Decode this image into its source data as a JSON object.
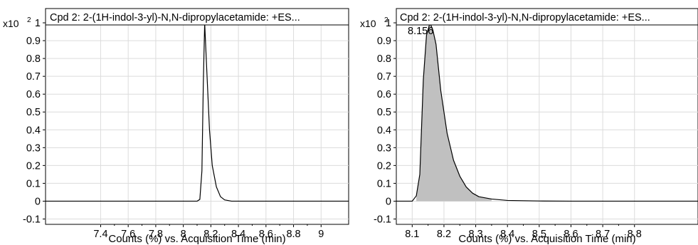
{
  "charts": [
    {
      "title": "Cpd 2: 2-(1H-indol-3-yl)-N,N-dipropylacetamide: +ES...",
      "multiplier": "x10",
      "exponent": "2",
      "xlabel": "Counts (%) vs. Acquisition Time (min)"
    },
    {
      "title": "Cpd 2: 2-(1H-indol-3-yl)-N,N-dipropylacetamide: +ES...",
      "multiplier": "x10",
      "exponent": "2",
      "xlabel": "Counts (%) vs. Acquisition Time (min)",
      "peak_label": "8.156"
    }
  ],
  "chart_data": [
    {
      "type": "line",
      "x": [
        7.0,
        8.1,
        8.12,
        8.135,
        8.145,
        8.155,
        8.17,
        8.19,
        8.21,
        8.24,
        8.27,
        8.3,
        8.35,
        9.2
      ],
      "y": [
        0,
        0,
        0.01,
        0.17,
        0.65,
        1.0,
        0.74,
        0.4,
        0.2,
        0.08,
        0.025,
        0.007,
        0.0,
        0
      ],
      "xlim": [
        7.0,
        9.2
      ],
      "ylim": [
        -0.13,
        1.08
      ],
      "xticks": [
        7.4,
        7.6,
        7.8,
        8,
        8.2,
        8.4,
        8.6,
        8.8,
        9
      ],
      "xtick_labels": [
        "7.4",
        "7.6",
        "7.8",
        "8",
        "8.2",
        "8.4",
        "8.6",
        "8.8",
        "9"
      ],
      "yticks": [
        -0.1,
        0,
        0.1,
        0.2,
        0.3,
        0.4,
        0.5,
        0.6,
        0.7,
        0.8,
        0.9,
        1
      ],
      "ytick_labels": [
        "-0.1",
        "0",
        "0.1",
        "0.2",
        "0.3",
        "0.4",
        "0.5",
        "0.6",
        "0.7",
        "0.8",
        "0.9",
        "1"
      ],
      "grid": true,
      "line_color": "#000000"
    },
    {
      "type": "area",
      "x": [
        8.05,
        8.1,
        8.113,
        8.124,
        8.135,
        8.145,
        8.156,
        8.165,
        8.175,
        8.19,
        8.21,
        8.23,
        8.25,
        8.27,
        8.29,
        8.31,
        8.35,
        8.4,
        8.5,
        8.6,
        9.0
      ],
      "y": [
        0,
        0,
        0.03,
        0.15,
        0.68,
        0.93,
        1.0,
        0.96,
        0.88,
        0.62,
        0.38,
        0.23,
        0.14,
        0.08,
        0.045,
        0.025,
        0.012,
        0.004,
        0.001,
        0.0,
        0
      ],
      "xlim": [
        8.05,
        9.0
      ],
      "ylim": [
        -0.13,
        1.08
      ],
      "xticks": [
        8.1,
        8.2,
        8.3,
        8.4,
        8.5,
        8.6,
        8.7,
        8.8
      ],
      "xtick_labels": [
        "8.1",
        "8.2",
        "8.3",
        "8.4",
        "8.5",
        "8.6",
        "8.7",
        "8.8"
      ],
      "yticks": [
        -0.1,
        0,
        0.1,
        0.2,
        0.3,
        0.4,
        0.5,
        0.6,
        0.7,
        0.8,
        0.9,
        1
      ],
      "ytick_labels": [
        "-0.1",
        "0",
        "0.1",
        "0.2",
        "0.3",
        "0.4",
        "0.5",
        "0.6",
        "0.7",
        "0.8",
        "0.9",
        "1"
      ],
      "fill_range": [
        8.113,
        8.35
      ],
      "peak": {
        "x": 8.156,
        "y": 1.0
      },
      "grid": true,
      "line_color": "#000000",
      "fill_color": "#c0c0c0"
    }
  ]
}
